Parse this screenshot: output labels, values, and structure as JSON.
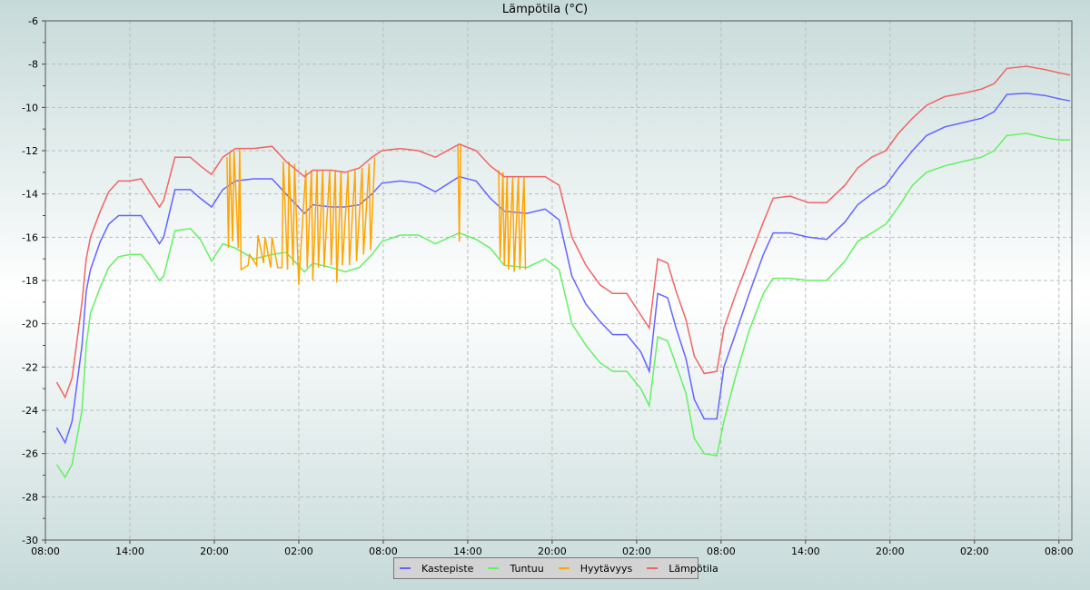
{
  "chart_data": {
    "type": "line",
    "title": "Lämpötila (°C)",
    "xlabel": "",
    "ylabel": "",
    "ylim": [
      -30,
      -6
    ],
    "yticks": [
      -6,
      -8,
      -10,
      -12,
      -14,
      -16,
      -18,
      -20,
      -22,
      -24,
      -26,
      -28,
      -30
    ],
    "xlim": [
      "D1 08:00",
      "D4 08:55"
    ],
    "xticks": [
      {
        "x": "D1 08:00",
        "label": "08:00"
      },
      {
        "x": "D1 14:00",
        "label": "14:00"
      },
      {
        "x": "D1 20:00",
        "label": "20:00"
      },
      {
        "x": "D2 02:00",
        "label": "02:00"
      },
      {
        "x": "D2 08:00",
        "label": "08:00"
      },
      {
        "x": "D2 14:00",
        "label": "14:00"
      },
      {
        "x": "D2 20:00",
        "label": "20:00"
      },
      {
        "x": "D3 02:00",
        "label": "02:00"
      },
      {
        "x": "D3 08:00",
        "label": "08:00"
      },
      {
        "x": "D3 14:00",
        "label": "14:00"
      },
      {
        "x": "D3 20:00",
        "label": "20:00"
      },
      {
        "x": "D4 02:00",
        "label": "02:00"
      },
      {
        "x": "D4 08:00",
        "label": "08:00"
      }
    ],
    "grid": true,
    "legend_position": "bottom",
    "x": [
      "D1 08:48",
      "D1 09:24",
      "D1 09:54",
      "D1 10:36",
      "D1 10:54",
      "D1 11:12",
      "D1 11:54",
      "D1 12:30",
      "D1 13:12",
      "D1 14:00",
      "D1 14:48",
      "D1 15:24",
      "D1 16:06",
      "D1 16:24",
      "D1 17:12",
      "D1 18:18",
      "D1 19:00",
      "D1 19:48",
      "D1 20:36",
      "D1 21:30",
      "D1 22:48",
      "D2 00:06",
      "D2 01:06",
      "D2 02:24",
      "D2 03:00",
      "D2 04:18",
      "D2 05:18",
      "D2 06:18",
      "D2 07:12",
      "D2 07:54",
      "D2 09:12",
      "D2 10:30",
      "D2 11:42",
      "D2 13:24",
      "D2 14:36",
      "D2 15:36",
      "D2 16:36",
      "D2 18:12",
      "D2 19:30",
      "D2 20:30",
      "D2 21:24",
      "D2 22:24",
      "D2 23:24",
      "D3 00:18",
      "D3 01:18",
      "D3 02:18",
      "D3 02:54",
      "D3 03:30",
      "D3 04:12",
      "D3 04:48",
      "D3 05:30",
      "D3 06:06",
      "D3 06:48",
      "D3 07:42",
      "D3 08:12",
      "D3 09:00",
      "D3 10:00",
      "D3 11:00",
      "D3 11:42",
      "D3 12:54",
      "D3 14:12",
      "D3 15:30",
      "D3 16:48",
      "D3 17:42",
      "D3 18:42",
      "D3 19:42",
      "D3 20:36",
      "D3 21:36",
      "D3 22:36",
      "D3 23:54",
      "D4 01:12",
      "D4 02:30",
      "D4 03:24",
      "D4 04:18",
      "D4 05:42",
      "D4 07:00",
      "D4 08:00",
      "D4 08:48"
    ],
    "series": [
      {
        "name": "Kastepiste",
        "color": "#6464ff",
        "values": [
          -24.8,
          -25.5,
          -24.5,
          -21,
          -18.5,
          -17.5,
          -16.2,
          -15.4,
          -15,
          -15,
          -15,
          -15.6,
          -16.3,
          -16,
          -13.8,
          -13.8,
          -14.2,
          -14.6,
          -13.8,
          -13.4,
          -13.3,
          -13.3,
          -14,
          -14.9,
          -14.5,
          -14.6,
          -14.6,
          -14.5,
          -14,
          -13.5,
          -13.4,
          -13.5,
          -13.9,
          -13.2,
          -13.4,
          -14.2,
          -14.8,
          -14.9,
          -14.7,
          -15.2,
          -17.8,
          -19.1,
          -19.9,
          -20.5,
          -20.5,
          -21.3,
          -22.2,
          -18.6,
          -18.8,
          -20.2,
          -21.6,
          -23.5,
          -24.4,
          -24.4,
          -22,
          -20.5,
          -18.6,
          -16.8,
          -15.8,
          -15.8,
          -16,
          -16.1,
          -15.3,
          -14.5,
          -14,
          -13.6,
          -12.8,
          -12,
          -11.3,
          -10.9,
          -10.7,
          -10.5,
          -10.2,
          -9.4,
          -9.35,
          -9.45,
          -9.6,
          -9.7
        ]
      },
      {
        "name": "Tuntuu",
        "color": "#64f064",
        "values": [
          -26.5,
          -27.1,
          -26.5,
          -24,
          -21,
          -19.5,
          -18.3,
          -17.4,
          -16.9,
          -16.8,
          -16.8,
          -17.3,
          -18,
          -17.8,
          -15.7,
          -15.6,
          -16.1,
          -17.1,
          -16.3,
          -16.5,
          -17,
          -16.8,
          -16.7,
          -17.6,
          -17.2,
          -17.4,
          -17.6,
          -17.4,
          -16.8,
          -16.2,
          -15.9,
          -15.9,
          -16.3,
          -15.8,
          -16.1,
          -16.5,
          -17.3,
          -17.4,
          -17,
          -17.5,
          -20,
          -21,
          -21.8,
          -22.2,
          -22.2,
          -23,
          -23.8,
          -20.6,
          -20.8,
          -21.9,
          -23.2,
          -25.3,
          -26,
          -26.1,
          -24.5,
          -22.5,
          -20.3,
          -18.6,
          -17.9,
          -17.9,
          -18,
          -18,
          -17.1,
          -16.2,
          -15.8,
          -15.4,
          -14.6,
          -13.6,
          -13,
          -12.7,
          -12.5,
          -12.3,
          -12,
          -11.3,
          -11.2,
          -11.4,
          -11.5,
          -11.5
        ]
      },
      {
        "name": "Hyytävyys",
        "color": "#ffa500",
        "segments": [
          {
            "x": [
              "D1 20:54",
              "D1 21:00",
              "D1 21:06",
              "D1 21:18",
              "D1 21:24",
              "D1 21:42",
              "D1 21:48",
              "D1 21:54",
              "D1 22:24",
              "D1 22:30",
              "D1 23:00",
              "D1 23:06",
              "D1 23:30",
              "D1 23:36",
              "D2 00:00",
              "D2 00:06",
              "D2 00:30",
              "D2 00:48",
              "D2 00:54",
              "D2 01:12",
              "D2 01:18",
              "D2 01:36",
              "D2 01:42",
              "D2 02:00",
              "D2 02:06",
              "D2 02:30",
              "D2 02:36",
              "D2 02:54",
              "D2 03:00",
              "D2 03:18",
              "D2 03:24",
              "D2 03:42",
              "D2 03:48",
              "D2 04:12",
              "D2 04:18",
              "D2 04:36",
              "D2 04:42",
              "D2 05:00",
              "D2 05:06",
              "D2 05:30",
              "D2 05:36",
              "D2 06:00",
              "D2 06:06",
              "D2 06:30",
              "D2 06:36",
              "D2 07:00",
              "D2 07:06",
              "D2 07:24"
            ],
            "values": [
              -12.3,
              -16.5,
              -12.1,
              -16.2,
              -12,
              -16.5,
              -11.9,
              -17.5,
              -17.3,
              -16.8,
              -17.3,
              -15.9,
              -17.2,
              -16,
              -17.4,
              -16,
              -17.4,
              -17.4,
              -12.5,
              -17.5,
              -12.5,
              -17.3,
              -12.6,
              -18.2,
              -17,
              -12.9,
              -17.4,
              -12.9,
              -18,
              -12.9,
              -17.4,
              -12.9,
              -17.4,
              -12.9,
              -17.3,
              -12.9,
              -18.1,
              -13,
              -17.3,
              -13,
              -17.3,
              -12.9,
              -17.1,
              -12.8,
              -16.8,
              -12.6,
              -16.6,
              -12.3
            ]
          },
          {
            "x": [
              "D2 13:18",
              "D2 13:24",
              "D2 13:30"
            ],
            "values": [
              -11.7,
              -16.2,
              -11.7
            ]
          },
          {
            "x": [
              "D2 16:12",
              "D2 16:18",
              "D2 16:30",
              "D2 16:36",
              "D2 16:48",
              "D2 16:54",
              "D2 17:12",
              "D2 17:18",
              "D2 17:36",
              "D2 17:42",
              "D2 18:00",
              "D2 18:06"
            ],
            "values": [
              -12.9,
              -17,
              -13,
              -17.3,
              -13.2,
              -17.5,
              -13.2,
              -17.6,
              -13.2,
              -17.5,
              -13.2,
              -17.5
            ]
          }
        ]
      },
      {
        "name": "Lämpötila",
        "color": "#f06464",
        "values": [
          -22.7,
          -23.4,
          -22.5,
          -19,
          -17,
          -16,
          -14.8,
          -13.9,
          -13.4,
          -13.4,
          -13.3,
          -13.9,
          -14.6,
          -14.3,
          -12.3,
          -12.3,
          -12.7,
          -13.1,
          -12.3,
          -11.9,
          -11.9,
          -11.8,
          -12.5,
          -13.2,
          -12.9,
          -12.9,
          -13,
          -12.8,
          -12.3,
          -12,
          -11.9,
          -12,
          -12.3,
          -11.7,
          -12,
          -12.7,
          -13.2,
          -13.2,
          -13.2,
          -13.6,
          -16,
          -17.3,
          -18.2,
          -18.6,
          -18.6,
          -19.6,
          -20.2,
          -17,
          -17.2,
          -18.5,
          -19.8,
          -21.5,
          -22.3,
          -22.2,
          -20.2,
          -18.7,
          -17,
          -15.3,
          -14.2,
          -14.1,
          -14.4,
          -14.4,
          -13.6,
          -12.8,
          -12.3,
          -12,
          -11.2,
          -10.5,
          -9.9,
          -9.5,
          -9.35,
          -9.15,
          -8.9,
          -8.2,
          -8.1,
          -8.25,
          -8.4,
          -8.5
        ]
      }
    ]
  }
}
